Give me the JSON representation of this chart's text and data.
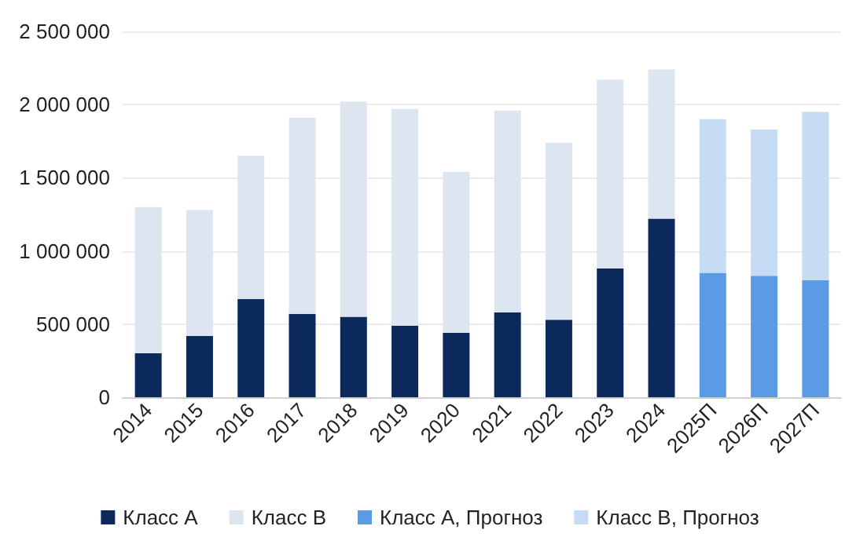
{
  "chart_data": {
    "type": "bar",
    "stacked": true,
    "categories": [
      "2014",
      "2015",
      "2016",
      "2017",
      "2018",
      "2019",
      "2020",
      "2021",
      "2022",
      "2023",
      "2024",
      "2025П",
      "2026П",
      "2027П"
    ],
    "series": [
      {
        "name": "Класс А",
        "color": "#0b2a5b",
        "values": [
          300000,
          420000,
          670000,
          570000,
          550000,
          490000,
          440000,
          580000,
          530000,
          880000,
          1220000,
          null,
          null,
          null
        ]
      },
      {
        "name": "Класс В",
        "color": "#dde6f0",
        "values": [
          1000000,
          860000,
          980000,
          1340000,
          1470000,
          1480000,
          1100000,
          1380000,
          1210000,
          1290000,
          1020000,
          null,
          null,
          null
        ]
      },
      {
        "name": "Класс А, Прогноз",
        "color": "#5b9be6",
        "values": [
          null,
          null,
          null,
          null,
          null,
          null,
          null,
          null,
          null,
          null,
          null,
          850000,
          830000,
          800000
        ]
      },
      {
        "name": "Класс В, Прогноз",
        "color": "#c6dcf5",
        "values": [
          null,
          null,
          null,
          null,
          null,
          null,
          null,
          null,
          null,
          null,
          null,
          1050000,
          1000000,
          1150000
        ]
      }
    ],
    "ylim": [
      0,
      2500000
    ],
    "yticks": [
      0,
      500000,
      1000000,
      1500000,
      2000000,
      2500000
    ],
    "grid": "y",
    "legend": "bottom"
  }
}
